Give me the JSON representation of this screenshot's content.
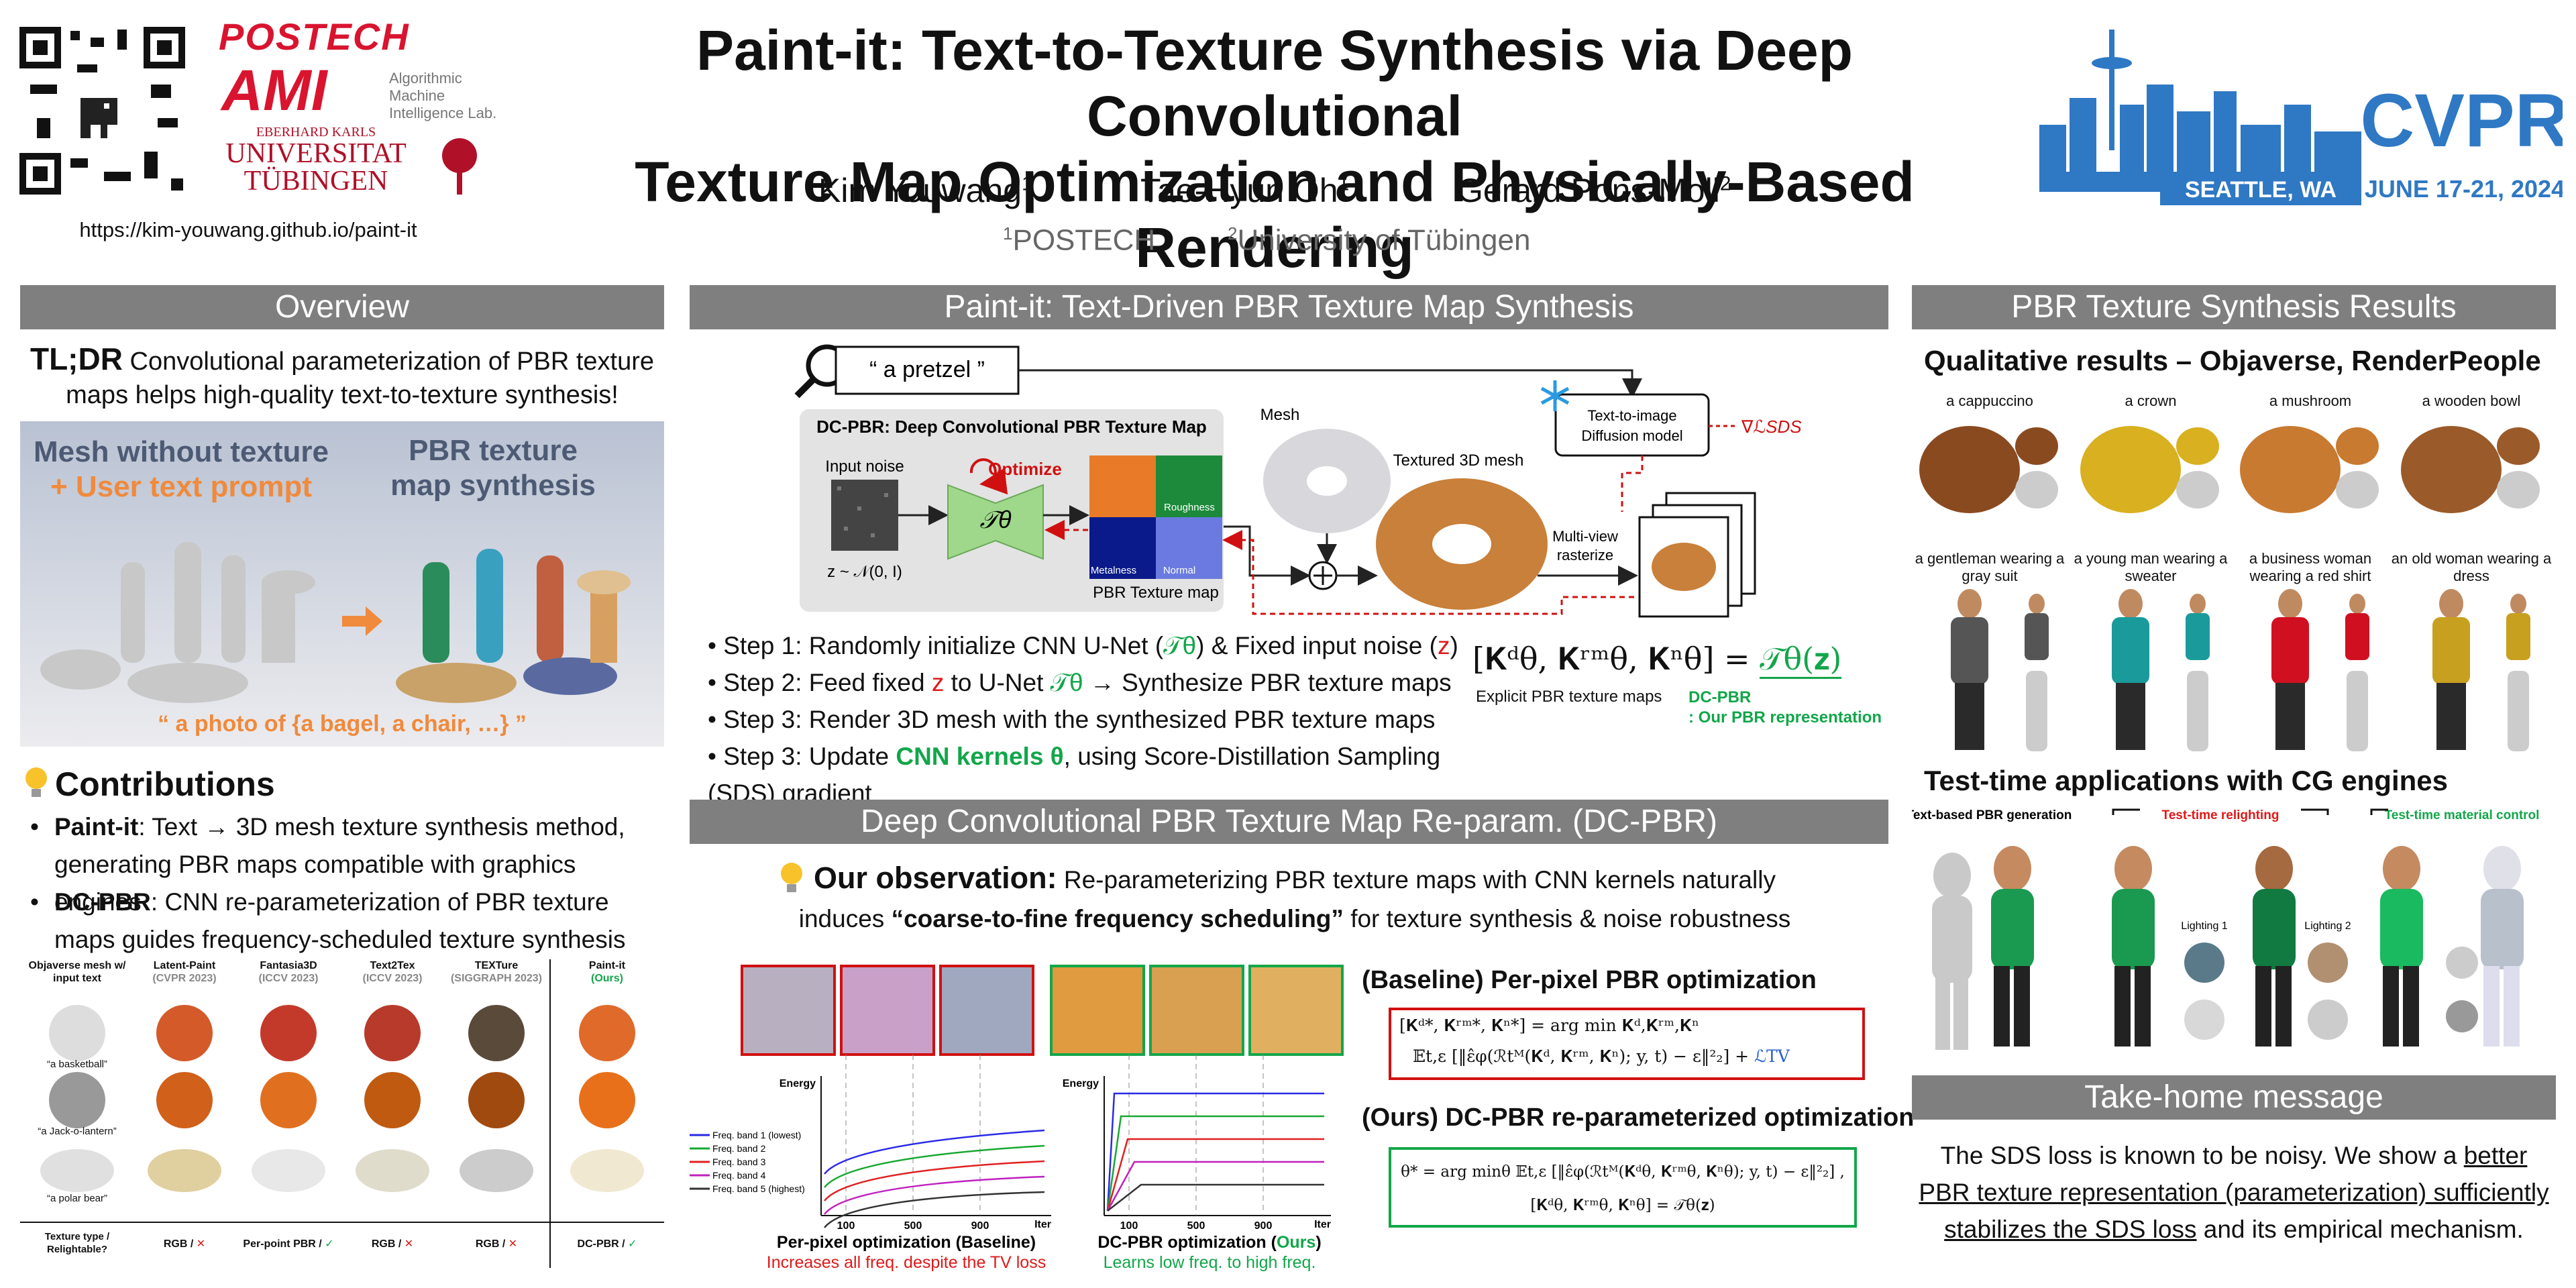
{
  "header": {
    "title": [
      "Paint-it: Text-to-Texture Synthesis via Deep Convolutional",
      "Texture Map Optimization and Physically-Based Rendering"
    ],
    "authors": [
      {
        "name": "Kim Youwang",
        "affiliation": "1"
      },
      {
        "name": "Tae-Hyun Oh",
        "affiliation": "1"
      },
      {
        "name": "Gerard Pons-Moll",
        "affiliation": "2"
      }
    ],
    "affiliations": [
      {
        "index": "1",
        "name": "POSTECH"
      },
      {
        "index": "2",
        "name": "University of Tübingen"
      }
    ],
    "url": "https://kim-youwang.github.io/paint-it",
    "logos": {
      "postech": "POSTECH",
      "ami": "AMI",
      "ami_lab": [
        "Algorithmic",
        "Machine",
        "Intelligence Lab."
      ],
      "tuebingen": [
        "EBERHARD KARLS",
        "UNIVERSITAT",
        "TÜBINGEN"
      ]
    },
    "conference": {
      "name": "CVPR",
      "location": "SEATTLE, WA",
      "dates": "JUNE 17-21, 2024"
    }
  },
  "overview": {
    "heading": "Overview",
    "tldr_label": "TL;DR",
    "tldr": " Convolutional parameterization of PBR texture maps helps high-quality text-to-texture synthesis!",
    "teaser": {
      "left_title": "Mesh without texture",
      "left_subtitle": "+ User text prompt",
      "right_title": "PBR texture map synthesis",
      "caption": "“ a photo of {a bagel, a chair, …} ”"
    }
  },
  "contributions": {
    "heading": "Contributions",
    "items": [
      {
        "term": "Paint-it",
        "text": ": Text → 3D mesh texture synthesis method, generating PBR maps compatible with graphics engines"
      },
      {
        "term": "DC-PBR",
        "text": ": CNN re-parameterization of PBR texture maps guides frequency-scheduled texture synthesis"
      }
    ],
    "comparison": {
      "columns": [
        {
          "name": "Objaverse mesh w/ input text"
        },
        {
          "name": "Latent-Paint",
          "venue": "(CVPR 2023)"
        },
        {
          "name": "Fantasia3D",
          "venue": "(ICCV 2023)"
        },
        {
          "name": "Text2Tex",
          "venue": "(ICCV 2023)"
        },
        {
          "name": "TEXTure",
          "venue": "(SIGGRAPH 2023)"
        },
        {
          "name": "Paint-it",
          "venue": "(Ours)"
        }
      ],
      "prompts": [
        "“a basketball”",
        "“a Jack-o-lantern”",
        "“a polar bear”"
      ],
      "footer_label": "Texture type / Relightable?",
      "texture_types": [
        {
          "type": "RGB / ",
          "relightable": "✕"
        },
        {
          "type": "Per-point PBR / ",
          "relightable": "✓"
        },
        {
          "type": "RGB / ",
          "relightable": "✕"
        },
        {
          "type": "RGB / ",
          "relightable": "✕"
        },
        {
          "type": "DC-PBR / ",
          "relightable": "✓"
        }
      ]
    }
  },
  "method": {
    "heading": "Paint-it: Text-Driven PBR Texture Map Synthesis",
    "diagram": {
      "prompt": "“ a pretzel ”",
      "dcpbr_title": "DC-PBR: Deep Convolutional PBR Texture Map",
      "input_noise": "Input noise",
      "optimize": "Optimize",
      "network": "𝒯θ",
      "noise_dist": "z ~ 𝒩(0, I)",
      "maps": [
        "Roughness",
        "Metalness",
        "Normal"
      ],
      "texture_map": "PBR Texture map",
      "mesh": "Mesh",
      "textured_mesh": "Textured 3D mesh",
      "diffusion": [
        "Text-to-image",
        "Diffusion model"
      ],
      "gradient": "∇ℒSDS",
      "rasterize": [
        "Multi-view",
        "rasterize"
      ]
    },
    "steps": [
      [
        {
          "text": "Step 1: Randomly initialize CNN U-Net (",
          "style": "plain"
        },
        {
          "text": "𝒯θ",
          "style": "green"
        },
        {
          "text": ") & Fixed input noise (",
          "style": "plain"
        },
        {
          "text": "z",
          "style": "red"
        },
        {
          "text": ")",
          "style": "plain"
        }
      ],
      [
        {
          "text": "Step 2: Feed fixed ",
          "style": "plain"
        },
        {
          "text": "z",
          "style": "red"
        },
        {
          "text": " to U-Net ",
          "style": "plain"
        },
        {
          "text": "𝒯θ",
          "style": "green"
        },
        {
          "text": " → Synthesize PBR texture maps",
          "style": "plain"
        }
      ],
      [
        {
          "text": "Step 3: Render 3D mesh with the synthesized PBR texture maps",
          "style": "plain"
        }
      ],
      [
        {
          "text": "Step 3: Update ",
          "style": "plain"
        },
        {
          "text": "CNN kernels θ",
          "style": "greenbold"
        },
        {
          "text": ", using Score-Distillation Sampling (SDS) gradient",
          "style": "plain"
        }
      ]
    ],
    "equation": {
      "lhs": "[𝐊ᵈθ, 𝐊ʳᵐθ, 𝐊ⁿθ] = ",
      "rhs": "𝒯θ(𝐳)",
      "lhs_note": "Explicit PBR texture maps",
      "rhs_note": [
        "DC-PBR",
        ": Our PBR representation"
      ]
    }
  },
  "dcpbr": {
    "heading": "Deep Convolutional PBR Texture Map Re-param. (DC-PBR)",
    "observation_label": "Our observation:",
    "observation": [
      " Re-parameterizing PBR texture maps with CNN kernels naturally",
      "induces ",
      "“coarse-to-fine frequency scheduling”",
      " for texture synthesis & noise robustness"
    ],
    "plots": [
      {
        "y_label": "Energy",
        "x_label": "Iter",
        "xticks": [
          100,
          500,
          900
        ],
        "caption": "Per-pixel optimization (Baseline)",
        "note": "Increases all freq. despite the TV loss"
      },
      {
        "y_label": "Energy",
        "x_label": "Iter",
        "xticks": [
          100,
          500,
          900
        ],
        "caption": [
          "DC-PBR optimization (",
          "Ours",
          ")"
        ],
        "note": "Learns low freq. to high freq."
      }
    ],
    "legend": [
      {
        "name": "Freq. band 1 (lowest)",
        "color": "#2a2ae8"
      },
      {
        "name": "Freq. band 2",
        "color": "#18a830"
      },
      {
        "name": "Freq. band 3",
        "color": "#e02020"
      },
      {
        "name": "Freq. band 4",
        "color": "#c020c0"
      },
      {
        "name": "Freq. band 5 (highest)",
        "color": "#333333"
      }
    ],
    "baseline": {
      "heading": "(Baseline) Per-pixel PBR optimization",
      "formula": [
        "[𝐊ᵈ*, 𝐊ʳᵐ*, 𝐊ⁿ*] = arg min 𝐊ᵈ,𝐊ʳᵐ,𝐊ⁿ",
        "𝔼t,ε [‖ε̂φ(ℛtᴹ(𝐊ᵈ, 𝐊ʳᵐ, 𝐊ⁿ); y, t) − ε‖²₂] + ",
        "ℒTV"
      ]
    },
    "ours": {
      "heading": "(Ours) DC-PBR re-parameterized optimization",
      "formula": [
        "θ* = arg minθ 𝔼t,ε [‖ε̂φ(ℛtᴹ(𝐊ᵈθ, 𝐊ʳᵐθ, 𝐊ⁿθ); y, t) − ε‖²₂] ,",
        "[𝐊ᵈθ, 𝐊ʳᵐθ, 𝐊ⁿθ] = 𝒯θ(𝐳)"
      ]
    }
  },
  "results": {
    "heading": "PBR Texture Synthesis Results",
    "qualitative_heading": "Qualitative results – Objaverse, RenderPeople",
    "objects": [
      "a cappuccino",
      "a crown",
      "a mushroom",
      "a wooden bowl"
    ],
    "humans": [
      "a gentleman wearing a gray suit",
      "a young man wearing a sweater",
      "a business woman wearing a red shirt",
      "an old woman wearing a dress"
    ],
    "applications_heading": "Test-time applications with CG engines",
    "applications": [
      "Text-based PBR generation",
      "Test-time relighting",
      "Test-time material control"
    ],
    "lightings": [
      "Lighting 1",
      "Lighting 2"
    ]
  },
  "takehome": {
    "heading": "Take-home message",
    "text": [
      "The SDS loss is known to be noisy. We show a ",
      "better PBR texture representation (parameterization) sufficiently stabilizes the SDS loss",
      " and its empirical mechanism."
    ]
  }
}
